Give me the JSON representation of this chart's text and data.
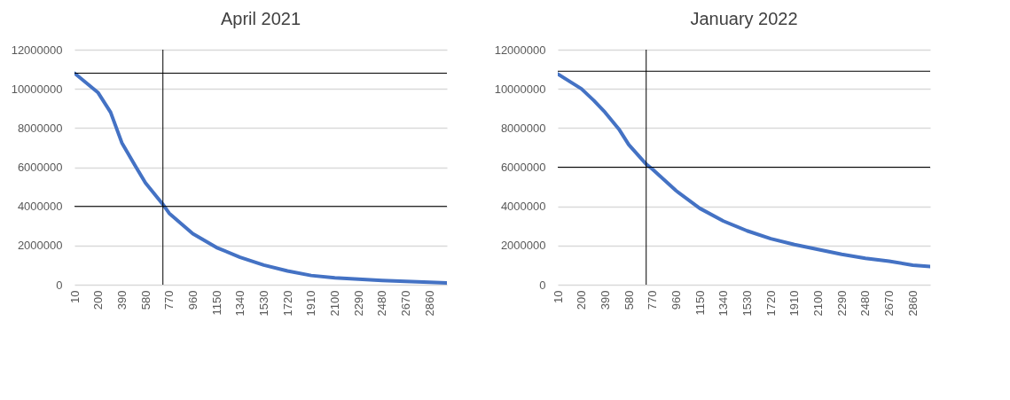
{
  "chart_data": [
    {
      "type": "line",
      "title": "April 2021",
      "x": [
        10,
        200,
        300,
        390,
        500,
        580,
        720,
        770,
        960,
        1150,
        1340,
        1530,
        1720,
        1910,
        2100,
        2290,
        2480,
        2670,
        2860,
        3000
      ],
      "series": [
        {
          "color": "#4472c4",
          "values": [
            10800000,
            9800000,
            8800000,
            7250000,
            6050000,
            5200000,
            4100000,
            3650000,
            2600000,
            1900000,
            1400000,
            1000000,
            700000,
            470000,
            350000,
            280000,
            220000,
            170000,
            120000,
            90000
          ]
        }
      ],
      "xlim": [
        10,
        3000
      ],
      "xticks": [
        10,
        200,
        390,
        580,
        770,
        960,
        1150,
        1340,
        1530,
        1720,
        1910,
        2100,
        2290,
        2480,
        2670,
        2860
      ],
      "ylim": [
        0,
        12000000
      ],
      "yticks": [
        0,
        2000000,
        4000000,
        6000000,
        8000000,
        10000000,
        12000000
      ],
      "grid": "y",
      "ref_lines": [
        {
          "axis": "y",
          "value": 10800000,
          "color": "#000000"
        },
        {
          "axis": "y",
          "value": 4000000,
          "color": "#000000"
        },
        {
          "axis": "x",
          "value": 720,
          "color": "#000000"
        }
      ]
    },
    {
      "type": "line",
      "title": "January 2022",
      "x": [
        10,
        200,
        300,
        390,
        500,
        580,
        720,
        770,
        960,
        1150,
        1340,
        1530,
        1720,
        1910,
        2100,
        2290,
        2480,
        2670,
        2860,
        3000
      ],
      "series": [
        {
          "color": "#4472c4",
          "values": [
            10760000,
            10000000,
            9400000,
            8800000,
            7950000,
            7150000,
            6150000,
            5900000,
            4800000,
            3900000,
            3250000,
            2750000,
            2350000,
            2050000,
            1800000,
            1550000,
            1350000,
            1200000,
            1000000,
            930000
          ]
        }
      ],
      "xlim": [
        10,
        3000
      ],
      "xticks": [
        10,
        200,
        390,
        580,
        770,
        960,
        1150,
        1340,
        1530,
        1720,
        1910,
        2100,
        2290,
        2480,
        2670,
        2860
      ],
      "ylim": [
        0,
        12000000
      ],
      "yticks": [
        0,
        2000000,
        4000000,
        6000000,
        8000000,
        10000000,
        12000000
      ],
      "grid": "y",
      "ref_lines": [
        {
          "axis": "y",
          "value": 10900000,
          "color": "#000000"
        },
        {
          "axis": "y",
          "value": 6000000,
          "color": "#000000"
        },
        {
          "axis": "x",
          "value": 720,
          "color": "#000000"
        }
      ]
    }
  ]
}
